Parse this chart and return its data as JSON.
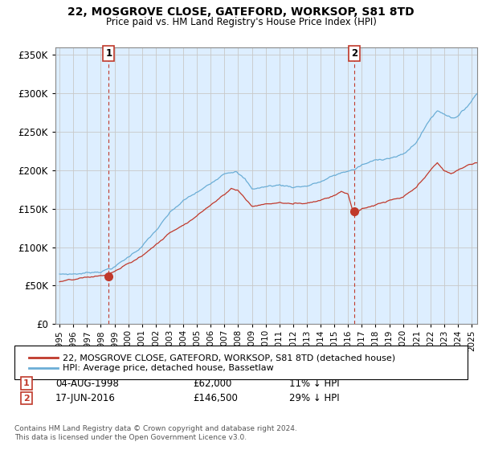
{
  "title": "22, MOSGROVE CLOSE, GATEFORD, WORKSOP, S81 8TD",
  "subtitle": "Price paid vs. HM Land Registry's House Price Index (HPI)",
  "legend_line1": "22, MOSGROVE CLOSE, GATEFORD, WORKSOP, S81 8TD (detached house)",
  "legend_line2": "HPI: Average price, detached house, Bassetlaw",
  "transaction1_date": "04-AUG-1998",
  "transaction1_price": "£62,000",
  "transaction1_hpi": "11% ↓ HPI",
  "transaction2_date": "17-JUN-2016",
  "transaction2_price": "£146,500",
  "transaction2_hpi": "29% ↓ HPI",
  "footer": "Contains HM Land Registry data © Crown copyright and database right 2024.\nThis data is licensed under the Open Government Licence v3.0.",
  "hpi_color": "#6baed6",
  "price_color": "#c0392b",
  "marker_color": "#c0392b",
  "vline_color": "#c0392b",
  "grid_color": "#c8c8c8",
  "plot_bg_color": "#ddeeff",
  "background_color": "#ffffff",
  "ylim": [
    0,
    360000
  ],
  "yticks": [
    0,
    50000,
    100000,
    150000,
    200000,
    250000,
    300000,
    350000
  ],
  "xlim_start": 1994.7,
  "xlim_end": 2025.4,
  "t1_x": 1998.58,
  "t1_y": 62000,
  "t2_x": 2016.46,
  "t2_y": 146500
}
